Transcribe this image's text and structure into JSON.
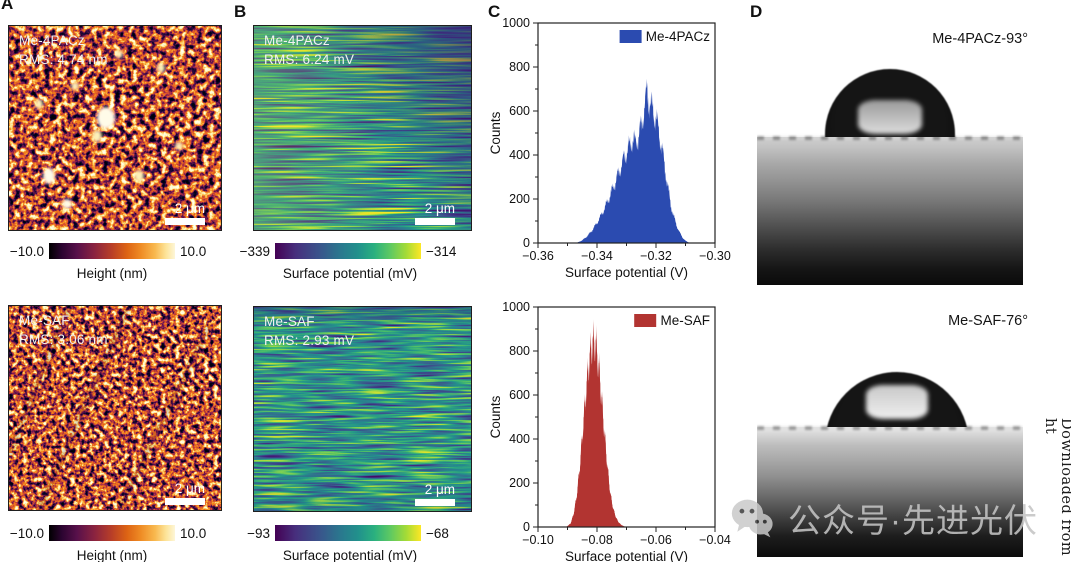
{
  "panels": {
    "a": {
      "label": "A",
      "rows": [
        {
          "sample": "Me-4PACz",
          "rms": "RMS: 4.74 nm",
          "scalebar": "2 μm",
          "colorbar": {
            "min": "−10.0",
            "max": "10.0",
            "title": "Height (nm)"
          }
        },
        {
          "sample": "Me-SAF",
          "rms": "RMS: 3.06 nm",
          "scalebar": "2 μm",
          "colorbar": {
            "min": "−10.0",
            "max": "10.0",
            "title": "Height (nm)"
          }
        }
      ]
    },
    "b": {
      "label": "B",
      "rows": [
        {
          "sample": "Me-4PACz",
          "rms": "RMS: 6.24 mV",
          "scalebar": "2 μm",
          "colorbar": {
            "min": "−339",
            "max": "−314",
            "title": "Surface potential (mV)"
          }
        },
        {
          "sample": "Me-SAF",
          "rms": "RMS: 2.93 mV",
          "scalebar": "2 μm",
          "colorbar": {
            "min": "−93",
            "max": "−68",
            "title": "Surface potential (mV)"
          }
        }
      ]
    },
    "c": {
      "label": "C"
    },
    "d": {
      "label": "D",
      "rows": [
        {
          "caption": "Me-4PACz-93°"
        },
        {
          "caption": "Me-SAF-76°"
        }
      ]
    }
  },
  "watermark": {
    "icon": "wechat-icon",
    "text": "公众号·先进光伏"
  },
  "side_note": "Downloaded from ht",
  "colors": {
    "hist_blue": "#2b4bb0",
    "hist_red": "#b23431",
    "height_colormap": [
      "#000000",
      "#57104a",
      "#b93f27",
      "#ef8c25",
      "#fdf6d8"
    ],
    "potential_colormap": [
      "#440154",
      "#3a538b",
      "#21918c",
      "#5ec962",
      "#fde725"
    ]
  },
  "chart_data": [
    {
      "type": "bar",
      "name": "me4pacz-surface-potential-histogram",
      "legend": "Me-4PACz",
      "color": "#2b4bb0",
      "xlabel": "Surface potential (V)",
      "ylabel": "Counts",
      "xlim": [
        -0.36,
        -0.3
      ],
      "ylim": [
        0,
        1000
      ],
      "xticks": [
        -0.36,
        -0.34,
        -0.32,
        -0.3
      ],
      "xtick_labels": [
        "−0.36",
        "−0.34",
        "−0.32",
        "−0.30"
      ],
      "xminor": [
        -0.35,
        -0.33,
        -0.31
      ],
      "yticks": [
        0,
        200,
        400,
        600,
        800,
        1000
      ],
      "yminor": [
        100,
        300,
        500,
        700,
        900
      ],
      "peak": {
        "x": -0.323,
        "counts": 690
      },
      "envelope": [
        [
          -0.347,
          0
        ],
        [
          -0.345,
          12
        ],
        [
          -0.343,
          35
        ],
        [
          -0.341,
          70
        ],
        [
          -0.339,
          115
        ],
        [
          -0.337,
          170
        ],
        [
          -0.335,
          235
        ],
        [
          -0.333,
          305
        ],
        [
          -0.331,
          380
        ],
        [
          -0.329,
          440
        ],
        [
          -0.328,
          470
        ],
        [
          -0.327,
          455
        ],
        [
          -0.326,
          480
        ],
        [
          -0.325,
          530
        ],
        [
          -0.324,
          610
        ],
        [
          -0.323,
          690
        ],
        [
          -0.3225,
          655
        ],
        [
          -0.322,
          630
        ],
        [
          -0.321,
          600
        ],
        [
          -0.32,
          565
        ],
        [
          -0.319,
          505
        ],
        [
          -0.318,
          430
        ],
        [
          -0.317,
          345
        ],
        [
          -0.316,
          255
        ],
        [
          -0.315,
          175
        ],
        [
          -0.314,
          120
        ],
        [
          -0.313,
          80
        ],
        [
          -0.312,
          48
        ],
        [
          -0.311,
          25
        ],
        [
          -0.31,
          10
        ],
        [
          -0.309,
          3
        ],
        [
          -0.308,
          0
        ]
      ]
    },
    {
      "type": "bar",
      "name": "mesaf-surface-potential-histogram",
      "legend": "Me-SAF",
      "color": "#b23431",
      "xlabel": "Surface potential (V)",
      "ylabel": "Counts",
      "xlim": [
        -0.1,
        -0.04
      ],
      "ylim": [
        0,
        1000
      ],
      "xticks": [
        -0.1,
        -0.08,
        -0.06,
        -0.04
      ],
      "xtick_labels": [
        "−0.10",
        "−0.08",
        "−0.06",
        "−0.04"
      ],
      "xminor": [
        -0.09,
        -0.07,
        -0.05
      ],
      "yticks": [
        0,
        200,
        400,
        600,
        800,
        1000
      ],
      "yminor": [
        100,
        300,
        500,
        700,
        900
      ],
      "peak": {
        "x": -0.081,
        "counts": 845
      },
      "envelope": [
        [
          -0.0905,
          0
        ],
        [
          -0.089,
          15
        ],
        [
          -0.088,
          55
        ],
        [
          -0.087,
          130
        ],
        [
          -0.086,
          250
        ],
        [
          -0.085,
          410
        ],
        [
          -0.084,
          575
        ],
        [
          -0.083,
          715
        ],
        [
          -0.082,
          815
        ],
        [
          -0.081,
          845
        ],
        [
          -0.0805,
          830
        ],
        [
          -0.08,
          795
        ],
        [
          -0.079,
          675
        ],
        [
          -0.078,
          515
        ],
        [
          -0.077,
          355
        ],
        [
          -0.076,
          215
        ],
        [
          -0.0755,
          160
        ],
        [
          -0.075,
          115
        ],
        [
          -0.074,
          60
        ],
        [
          -0.073,
          28
        ],
        [
          -0.072,
          12
        ],
        [
          -0.071,
          4
        ],
        [
          -0.07,
          0
        ]
      ]
    }
  ]
}
